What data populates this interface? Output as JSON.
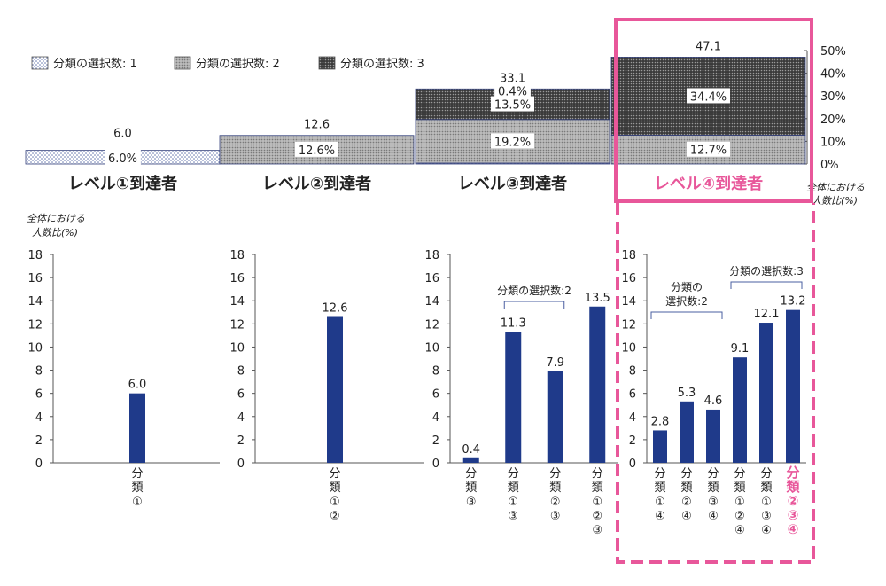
{
  "colors": {
    "bar": "#1f3a8a",
    "accent": "#e8579a",
    "axis": "#555555",
    "text": "#222222"
  },
  "legend": [
    {
      "key": "s1",
      "label": "分類の選択数: 1"
    },
    {
      "key": "s2",
      "label": "分類の選択数: 2"
    },
    {
      "key": "s3",
      "label": "分類の選択数: 3"
    }
  ],
  "top_chart": {
    "type": "stacked-bar",
    "ylim": [
      0,
      50
    ],
    "y_ticks": [
      "0%",
      "10%",
      "20%",
      "30%",
      "40%",
      "50%"
    ],
    "ylabel_line1": "全体における",
    "ylabel_line2": "人数比(%)",
    "levels": [
      {
        "label": "レベル①到達者",
        "total": "6.0",
        "highlight": false,
        "segments": [
          {
            "key": "s1",
            "value": 6.0,
            "label": "6.0%"
          }
        ]
      },
      {
        "label": "レベル②到達者",
        "total": "12.6",
        "highlight": false,
        "segments": [
          {
            "key": "s1",
            "value": 0,
            "label": ""
          },
          {
            "key": "s2",
            "value": 12.6,
            "label": "12.6%"
          }
        ]
      },
      {
        "label": "レベル③到達者",
        "total": "33.1",
        "highlight": false,
        "segments": [
          {
            "key": "s1",
            "value": 0.4,
            "label": "0.4%"
          },
          {
            "key": "s2",
            "value": 19.2,
            "label": "19.2%"
          },
          {
            "key": "s3",
            "value": 13.5,
            "label": "13.5%"
          }
        ]
      },
      {
        "label": "レベル④到達者",
        "total": "47.1",
        "highlight": true,
        "segments": [
          {
            "key": "s2",
            "value": 12.7,
            "label": "12.7%"
          },
          {
            "key": "s3",
            "value": 34.4,
            "label": "34.4%"
          }
        ]
      }
    ]
  },
  "bottom_ylabel_line1": "全体における",
  "bottom_ylabel_line2": "人数比(%)",
  "chart_data": [
    {
      "type": "bar",
      "title": "レベル①到達者",
      "ylim": [
        0,
        18
      ],
      "y_ticks": [
        0,
        2,
        4,
        6,
        8,
        10,
        12,
        14,
        16,
        18
      ],
      "categories": [
        [
          "分",
          "類",
          "①"
        ]
      ],
      "values": [
        6.0
      ],
      "value_labels": [
        "6.0"
      ],
      "highlight_index": -1,
      "brackets": []
    },
    {
      "type": "bar",
      "title": "レベル②到達者",
      "ylim": [
        0,
        18
      ],
      "y_ticks": [
        0,
        2,
        4,
        6,
        8,
        10,
        12,
        14,
        16,
        18
      ],
      "categories": [
        [
          "分",
          "類",
          "①",
          "②"
        ]
      ],
      "values": [
        12.6
      ],
      "value_labels": [
        "12.6"
      ],
      "highlight_index": -1,
      "brackets": []
    },
    {
      "type": "bar",
      "title": "レベル③到達者",
      "ylim": [
        0,
        18
      ],
      "y_ticks": [
        0,
        2,
        4,
        6,
        8,
        10,
        12,
        14,
        16,
        18
      ],
      "categories": [
        [
          "分",
          "類",
          "③"
        ],
        [
          "分",
          "類",
          "①",
          "③"
        ],
        [
          "分",
          "類",
          "②",
          "③"
        ],
        [
          "分",
          "類",
          "①",
          "②",
          "③"
        ]
      ],
      "values": [
        0.4,
        11.3,
        7.9,
        13.5
      ],
      "value_labels": [
        "0.4",
        "11.3",
        "7.9",
        "13.5"
      ],
      "highlight_index": -1,
      "brackets": [
        {
          "from": 1,
          "to": 2,
          "lines": [
            "分類の選択数:2"
          ]
        }
      ]
    },
    {
      "type": "bar",
      "title": "レベル④到達者",
      "ylim": [
        0,
        18
      ],
      "y_ticks": [
        0,
        2,
        4,
        6,
        8,
        10,
        12,
        14,
        16,
        18
      ],
      "categories": [
        [
          "分",
          "類",
          "①",
          "④"
        ],
        [
          "分",
          "類",
          "②",
          "④"
        ],
        [
          "分",
          "類",
          "③",
          "④"
        ],
        [
          "分",
          "類",
          "①",
          "②",
          "④"
        ],
        [
          "分",
          "類",
          "①",
          "③",
          "④"
        ],
        [
          "分",
          "類",
          "②",
          "③",
          "④"
        ]
      ],
      "values": [
        2.8,
        5.3,
        4.6,
        9.1,
        12.1,
        13.2
      ],
      "value_labels": [
        "2.8",
        "5.3",
        "4.6",
        "9.1",
        "12.1",
        "13.2"
      ],
      "highlight_index": 5,
      "brackets": [
        {
          "from": 0,
          "to": 2,
          "lines": [
            "分類の",
            "選択数:2"
          ]
        },
        {
          "from": 3,
          "to": 5,
          "lines": [
            "分類の選択数:3"
          ]
        }
      ]
    }
  ]
}
